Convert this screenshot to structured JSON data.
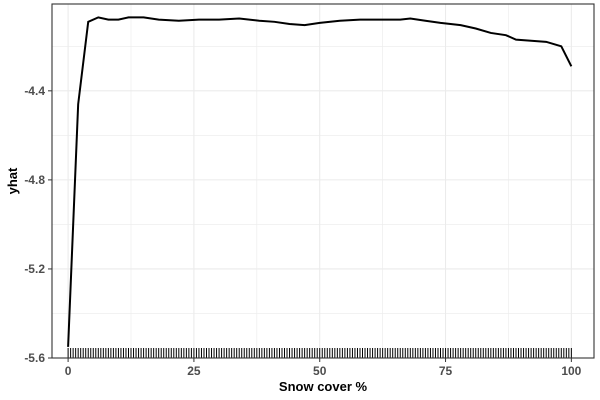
{
  "chart_data": {
    "type": "line",
    "xlabel": "Snow cover %",
    "ylabel": "yhat",
    "xlim": [
      -3.2,
      104.5
    ],
    "ylim": [
      -5.6,
      -4.01
    ],
    "x_ticks": [
      0,
      25,
      50,
      75,
      100
    ],
    "x_tick_labels": [
      "0",
      "25",
      "50",
      "75",
      "100"
    ],
    "y_ticks": [
      -4.4,
      -4.8,
      -5.2,
      -5.6
    ],
    "y_tick_labels": [
      "-4.4",
      "-4.8",
      "-5.2",
      "-5.6"
    ],
    "grid": true,
    "series": [
      {
        "x": [
          0,
          2,
          4,
          6,
          8,
          10,
          12,
          15,
          18,
          22,
          26,
          30,
          34,
          38,
          41,
          44,
          47,
          50,
          54,
          58,
          62,
          66,
          68,
          71,
          74,
          78,
          81,
          84,
          87,
          89,
          92,
          95,
          98,
          100
        ],
        "y": [
          -5.55,
          -4.46,
          -4.09,
          -4.07,
          -4.08,
          -4.08,
          -4.07,
          -4.07,
          -4.08,
          -4.085,
          -4.08,
          -4.08,
          -4.075,
          -4.085,
          -4.09,
          -4.1,
          -4.105,
          -4.095,
          -4.085,
          -4.08,
          -4.08,
          -4.08,
          -4.075,
          -4.085,
          -4.095,
          -4.105,
          -4.12,
          -4.14,
          -4.15,
          -4.17,
          -4.175,
          -4.18,
          -4.2,
          -4.29
        ]
      }
    ],
    "rug_x": [
      0,
      0.5,
      1,
      1.5,
      2,
      2.5,
      3,
      3.5,
      4,
      4.5,
      5,
      5.5,
      6,
      6.5,
      7,
      7.5,
      8,
      8.5,
      9,
      9.5,
      10,
      10.5,
      11,
      11.5,
      12,
      12.5,
      13,
      13.5,
      14,
      14.5,
      15,
      15.5,
      16,
      16.5,
      17,
      17.5,
      18,
      18.5,
      19,
      19.5,
      20,
      20.5,
      21,
      21.5,
      22,
      22.5,
      23,
      23.5,
      24,
      24.5,
      25,
      25.5,
      26,
      26.5,
      27,
      27.5,
      28,
      28.5,
      29,
      29.5,
      30,
      30.5,
      31,
      31.5,
      32,
      32.5,
      33,
      33.5,
      34,
      34.5,
      35,
      35.5,
      36,
      36.5,
      37,
      37.5,
      38,
      38.5,
      39,
      39.5,
      40,
      40.5,
      41,
      41.5,
      42,
      42.5,
      43,
      43.5,
      44,
      44.5,
      45,
      45.5,
      46,
      46.5,
      47,
      47.5,
      48,
      48.5,
      49,
      49.5,
      50,
      50.5,
      51,
      51.5,
      52,
      52.5,
      53,
      53.5,
      54,
      54.5,
      55,
      55.5,
      56,
      56.5,
      57,
      57.5,
      58,
      58.5,
      59,
      59.5,
      60,
      60.5,
      61,
      61.5,
      62,
      62.5,
      63,
      63.5,
      64,
      64.5,
      65,
      65.5,
      66,
      66.5,
      67,
      67.5,
      68,
      68.5,
      69,
      69.5,
      70,
      70.5,
      71,
      71.5,
      72,
      72.5,
      73,
      73.5,
      74,
      74.5,
      75,
      75.5,
      76,
      76.5,
      77,
      77.5,
      78,
      78.5,
      79,
      79.5,
      80,
      80.5,
      81,
      81.5,
      82,
      82.5,
      83,
      83.5,
      84,
      84.5,
      85,
      85.5,
      86,
      86.5,
      87,
      87.5,
      88,
      88.5,
      89,
      89.5,
      90,
      90.5,
      91,
      91.5,
      92,
      92.5,
      93,
      93.5,
      94,
      94.5,
      95,
      95.5,
      96,
      96.5,
      97,
      97.5,
      98,
      98.5,
      99,
      99.5,
      100
    ],
    "colors": {
      "line": "#000000",
      "rug": "#000000",
      "grid": "#ebebeb",
      "panel_border": "#333333",
      "tick_label": "#4d4d4d"
    }
  }
}
